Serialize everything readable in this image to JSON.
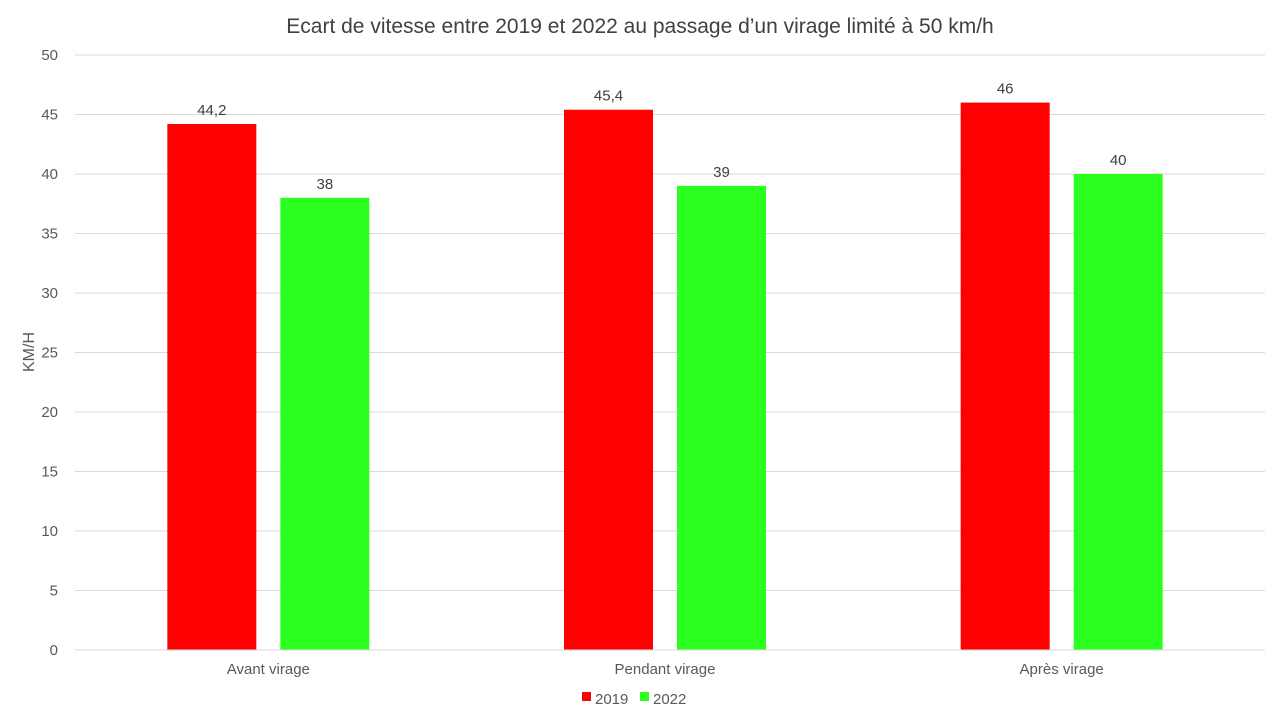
{
  "chart_data": {
    "type": "bar",
    "title": "Ecart de vitesse entre 2019 et 2022 au passage d’un virage limité à 50 km/h",
    "xlabel": "",
    "ylabel": "KM/H",
    "categories": [
      "Avant virage",
      "Pendant virage",
      "Après virage"
    ],
    "series": [
      {
        "name": "2019",
        "values": [
          44.2,
          45.4,
          46
        ],
        "labels": [
          "44,2",
          "45,4",
          "46"
        ],
        "color": "#ff0000"
      },
      {
        "name": "2022",
        "values": [
          38,
          39,
          40
        ],
        "labels": [
          "38",
          "39",
          "40"
        ],
        "color": "#2aff1f"
      }
    ],
    "ylim": [
      0,
      50
    ],
    "yticks": [
      0,
      5,
      10,
      15,
      20,
      25,
      30,
      35,
      40,
      45,
      50
    ],
    "grid": true,
    "legend_position": "bottom"
  }
}
